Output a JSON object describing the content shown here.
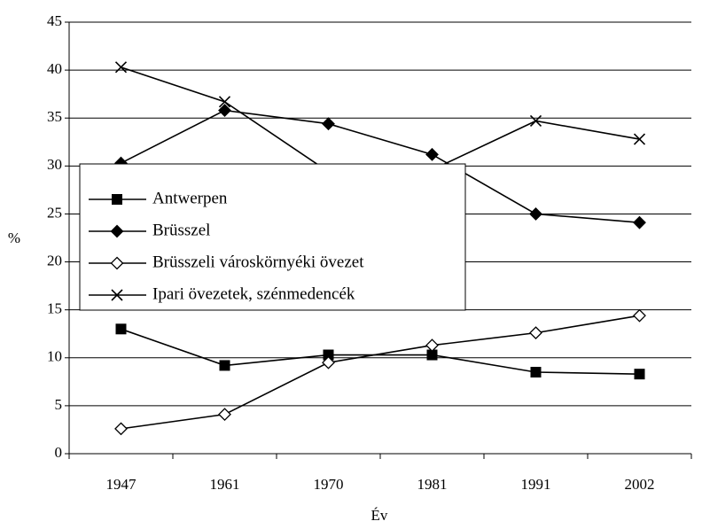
{
  "chart_data": {
    "type": "line",
    "x_label": "Év",
    "y_label": "%",
    "categories": [
      "1947",
      "1961",
      "1970",
      "1981",
      "1991",
      "2002"
    ],
    "series": [
      {
        "name": "Antwerpen",
        "color": "#000000",
        "marker": "square",
        "values": [
          13.0,
          9.2,
          10.3,
          10.3,
          8.5,
          8.3
        ]
      },
      {
        "name": "Brüsszel",
        "color": "#000000",
        "marker": "diamond",
        "values": [
          30.3,
          35.8,
          34.4,
          31.2,
          25.0,
          24.1
        ]
      },
      {
        "name": "Brüsszeli városkörnyéki övezet",
        "color": "#000000",
        "marker": "diamond-open",
        "values": [
          2.6,
          4.1,
          9.5,
          11.3,
          12.6,
          14.4
        ]
      },
      {
        "name": "Ipari övezetek, szénmedencék",
        "color": "#000000",
        "marker": "x",
        "values": [
          40.3,
          36.7,
          29.4,
          29.6,
          34.7,
          32.8
        ]
      }
    ],
    "ylim": [
      0,
      45
    ],
    "yticks": [
      0,
      5,
      10,
      15,
      20,
      25,
      30,
      35,
      40,
      45
    ],
    "grid": true,
    "legend": "left"
  }
}
